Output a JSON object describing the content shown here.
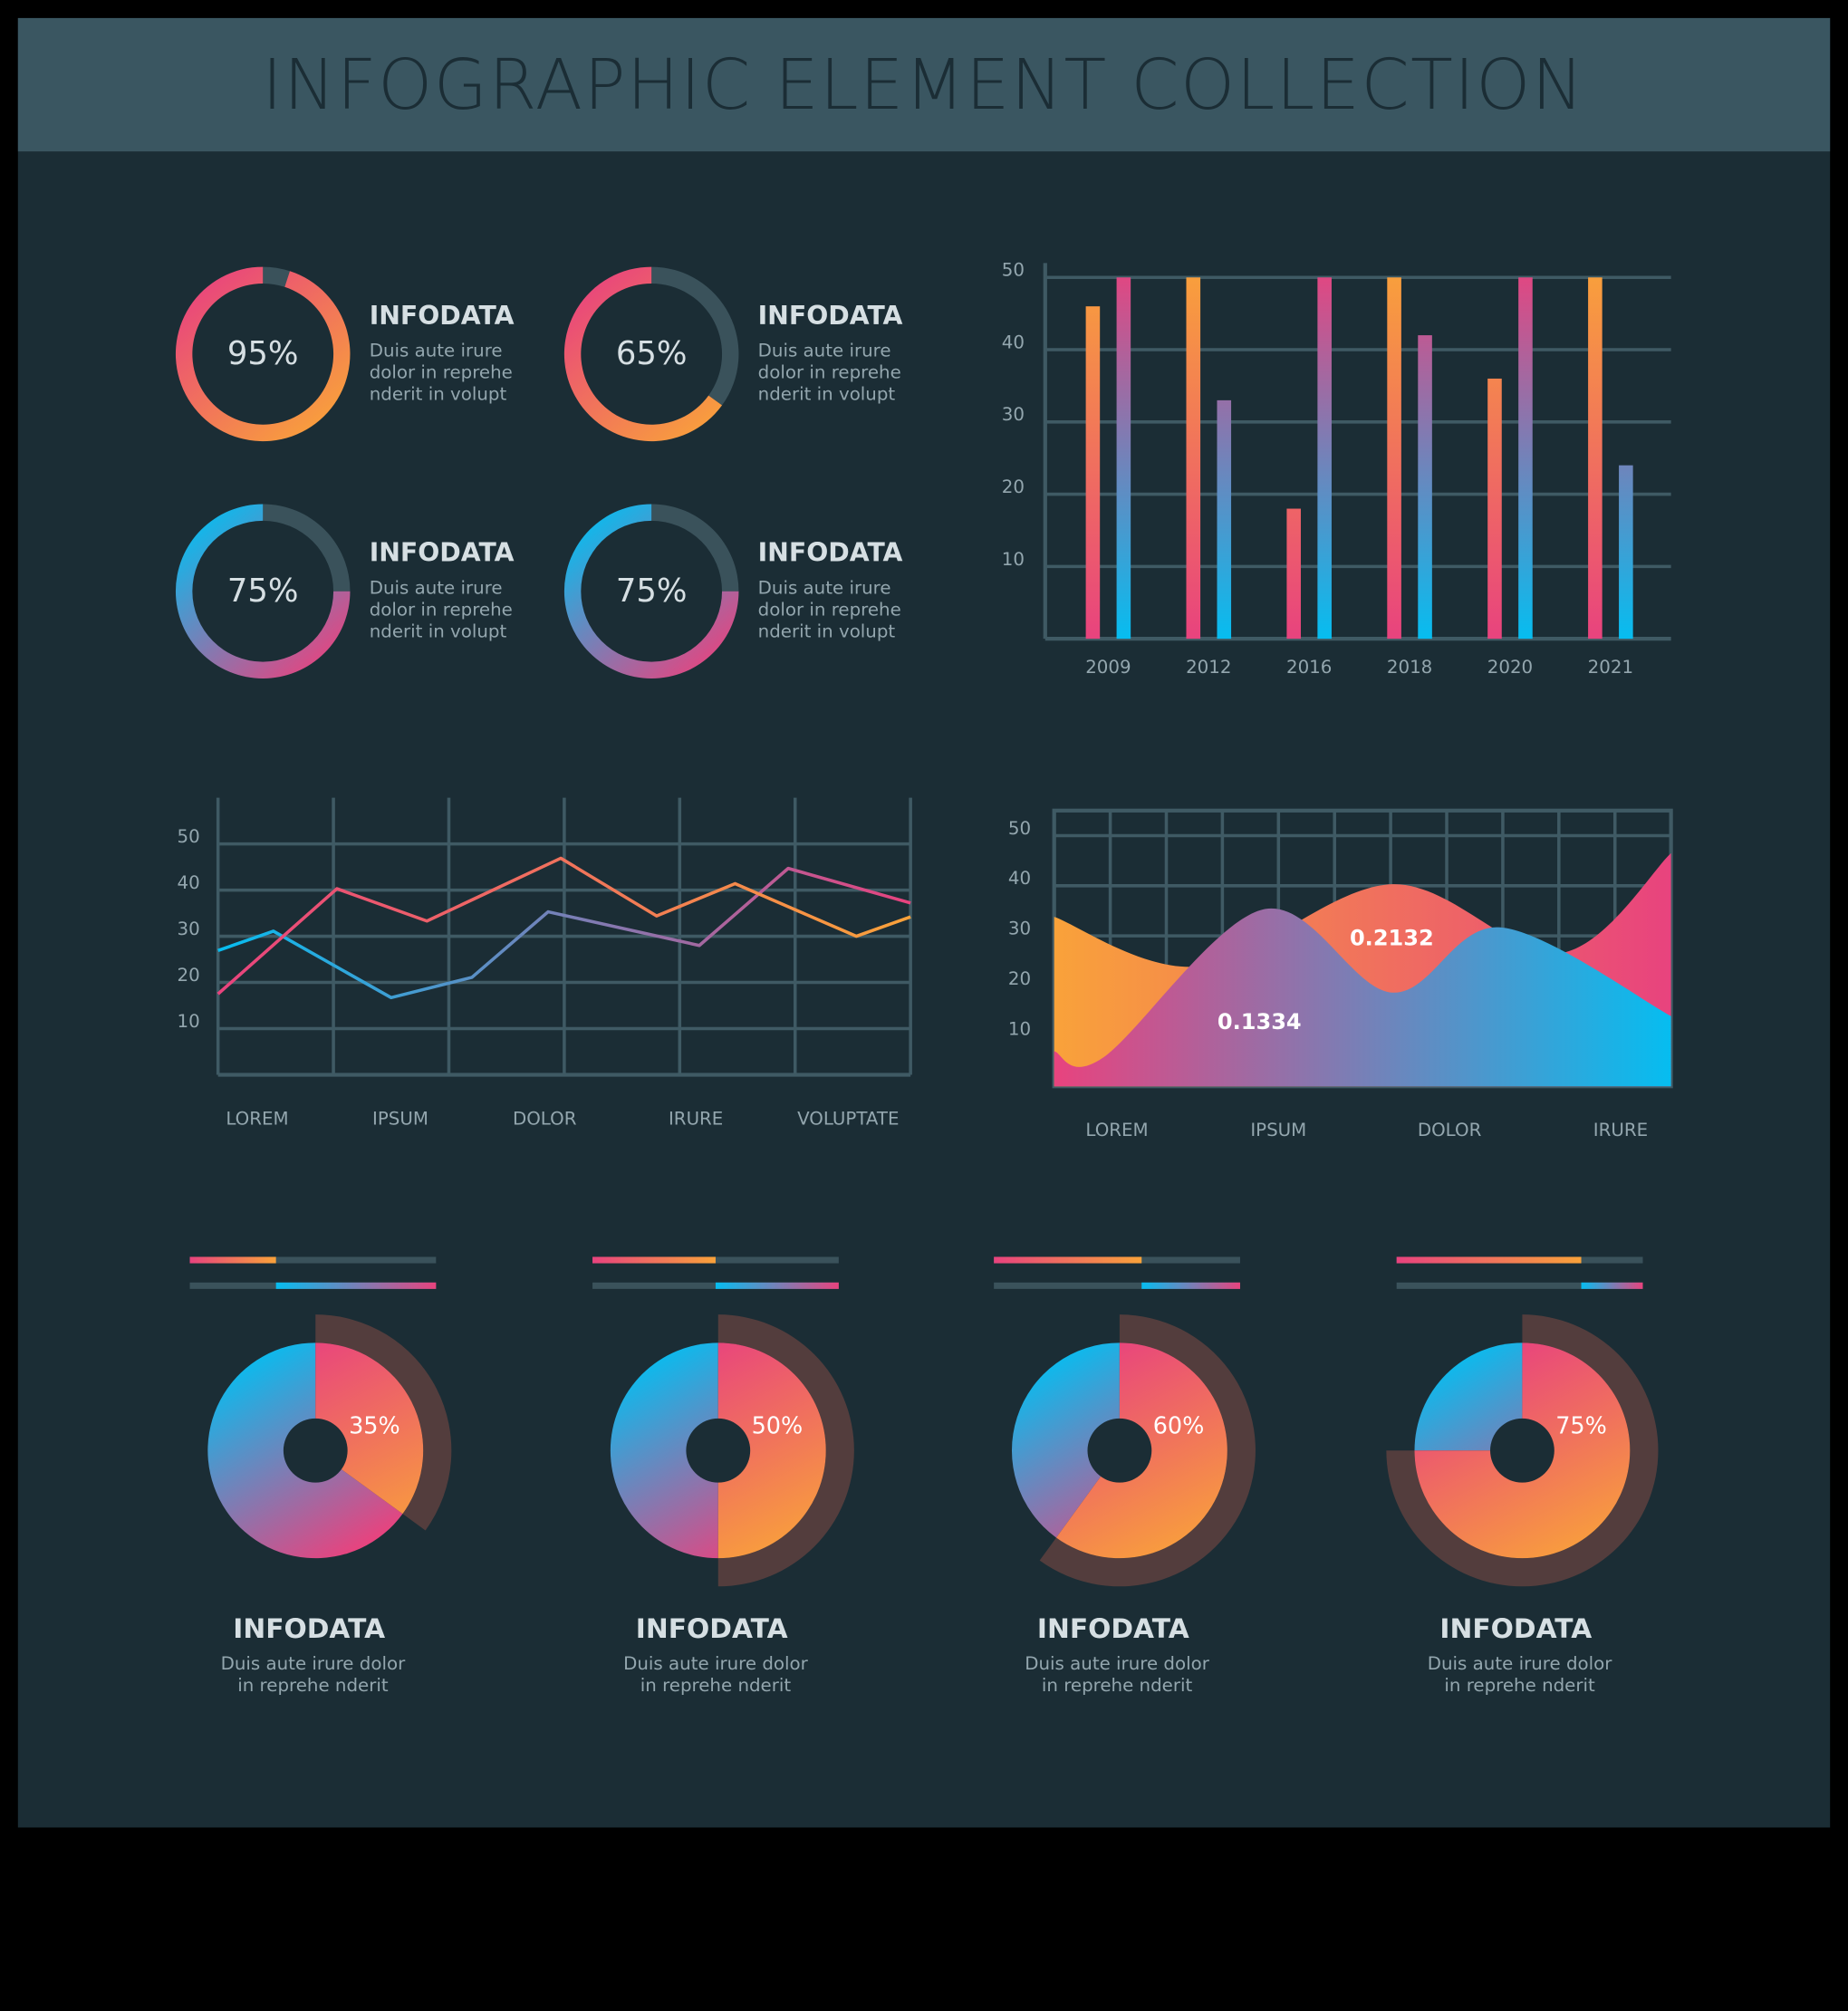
{
  "title": "INFOGRAPHIC ELEMENT COLLECTION",
  "chart_data": [
    {
      "type": "donut",
      "values": [
        95
      ],
      "value_labels": [
        "95%"
      ],
      "title": "INFODATA",
      "description": [
        "Duis aute irure",
        "dolor in reprehe",
        "nderit in volupt"
      ],
      "colors": [
        "#e8437e",
        "#f9a23a"
      ],
      "track_color": "#3a525b"
    },
    {
      "type": "donut",
      "values": [
        65
      ],
      "value_labels": [
        "65%"
      ],
      "title": "INFODATA",
      "description": [
        "Duis aute irure",
        "dolor in reprehe",
        "nderit in volupt"
      ],
      "colors": [
        "#e8437e",
        "#f9a23a"
      ],
      "track_color": "#3a525b"
    },
    {
      "type": "donut",
      "values": [
        75
      ],
      "value_labels": [
        "75%"
      ],
      "title": "INFODATA",
      "description": [
        "Duis aute irure",
        "dolor in reprehe",
        "nderit in volupt"
      ],
      "colors": [
        "#06bdf0",
        "#e8437e"
      ],
      "track_color": "#3a525b"
    },
    {
      "type": "donut",
      "values": [
        75
      ],
      "value_labels": [
        "75%"
      ],
      "title": "INFODATA",
      "description": [
        "Duis aute irure",
        "dolor in reprehe",
        "nderit in volupt"
      ],
      "colors": [
        "#06bdf0",
        "#e8437e"
      ],
      "track_color": "#3a525b"
    },
    {
      "type": "bar",
      "categories": [
        "2009",
        "2012",
        "2016",
        "2018",
        "2020",
        "2021"
      ],
      "series": [
        {
          "colors": [
            "#f9a23a",
            "#e8437e"
          ],
          "values": [
            46,
            50,
            18,
            50,
            36,
            50
          ]
        },
        {
          "colors": [
            "#e8437e",
            "#06bdf0"
          ],
          "values": [
            50,
            33,
            50,
            42,
            50,
            24
          ]
        }
      ],
      "ylim": [
        0,
        52
      ],
      "yticks": [
        10,
        20,
        30,
        40,
        50
      ],
      "grid": true
    },
    {
      "type": "line",
      "xlim": [
        0,
        6
      ],
      "ylim": [
        0,
        60
      ],
      "yticks": [
        10,
        20,
        30,
        40,
        50
      ],
      "grid": true,
      "xgrid": [
        0,
        1,
        2,
        3,
        4,
        5,
        6
      ],
      "xticks": [
        {
          "value": 0.34,
          "label": "LOREM"
        },
        {
          "value": 1.58,
          "label": "IPSUM"
        },
        {
          "value": 2.83,
          "label": "DOLOR"
        },
        {
          "value": 4.14,
          "label": "IRURE"
        },
        {
          "value": 5.46,
          "label": "VOLUPTATE"
        }
      ],
      "series": [
        {
          "colors": [
            "#06bdf0",
            "#e8437e"
          ],
          "x": [
            0,
            0.48,
            1.5,
            2.2,
            2.86,
            4.17,
            4.94,
            6
          ],
          "values": [
            26.9,
            31.1,
            16.7,
            21.1,
            35.3,
            28,
            44.7,
            37.2
          ]
        },
        {
          "colors": [
            "#e8437e",
            "#f9a23a"
          ],
          "x": [
            0,
            1.03,
            1.81,
            2.97,
            3.8,
            4.48,
            5.53,
            6
          ],
          "values": [
            17.5,
            40.3,
            33.3,
            46.9,
            34.4,
            41.4,
            30,
            34.2
          ]
        }
      ]
    },
    {
      "type": "area",
      "xlim": [
        0,
        11
      ],
      "ylim": [
        0,
        55
      ],
      "yticks": [
        10,
        20,
        30,
        40,
        50
      ],
      "grid": true,
      "xgrid": [
        0,
        1,
        2,
        3,
        4,
        5,
        6,
        7,
        8,
        9,
        10,
        11
      ],
      "xticks": [
        {
          "value": 1.12,
          "label": "LOREM"
        },
        {
          "value": 4.0,
          "label": "IPSUM"
        },
        {
          "value": 7.05,
          "label": "DOLOR"
        },
        {
          "value": 10.1,
          "label": "IRURE"
        }
      ],
      "series": [
        {
          "colors": [
            "#f9a23a",
            "#e8437e"
          ],
          "x": [
            0,
            2.59,
            6.02,
            9,
            11
          ],
          "values": [
            33.8,
            23.9,
            40.3,
            26.5,
            46.5
          ]
        },
        {
          "colors": [
            "#e8437e",
            "#06bdf0"
          ],
          "x": [
            0,
            0.87,
            3.73,
            6.02,
            7.96,
            11
          ],
          "values": [
            7,
            5.7,
            35.3,
            18.7,
            31.7,
            14
          ]
        }
      ],
      "annotations": [
        {
          "text": "0.2132",
          "x": 6.02,
          "y": 29.4
        },
        {
          "text": "0.1334",
          "x": 3.66,
          "y": 12.7
        }
      ]
    },
    {
      "type": "pie",
      "values": [
        35
      ],
      "value_labels": [
        "35%"
      ],
      "title": "INFODATA",
      "description": [
        "Duis aute irure dolor",
        "in reprehe nderit"
      ]
    },
    {
      "type": "pie",
      "values": [
        50
      ],
      "value_labels": [
        "50%"
      ],
      "title": "INFODATA",
      "description": [
        "Duis aute irure dolor",
        "in reprehe nderit"
      ]
    },
    {
      "type": "pie",
      "values": [
        60
      ],
      "value_labels": [
        "60%"
      ],
      "title": "INFODATA",
      "description": [
        "Duis aute irure dolor",
        "in reprehe nderit"
      ]
    },
    {
      "type": "pie",
      "values": [
        75
      ],
      "value_labels": [
        "75%"
      ],
      "title": "INFODATA",
      "description": [
        "Duis aute irure dolor",
        "in reprehe nderit"
      ]
    }
  ]
}
